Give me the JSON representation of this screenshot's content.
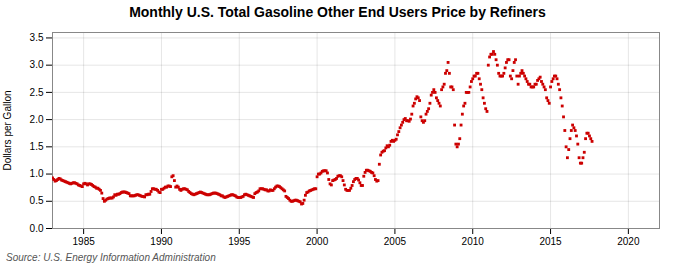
{
  "chart_data": {
    "type": "scatter",
    "title": "Monthly U.S. Total Gasoline Other End Users Price by Refiners",
    "ylabel": "Dollars per Gallon",
    "caption": "Source: U.S. Energy Information Administration",
    "color": "#cc0000",
    "marker": "square",
    "grid": true,
    "xlim": [
      1983,
      2022
    ],
    "xticks": [
      1985,
      1990,
      1995,
      2000,
      2005,
      2010,
      2015,
      2020
    ],
    "ylim": [
      0.0,
      3.6
    ],
    "yticks": [
      {
        "value": 0.0,
        "label": "0.0"
      },
      0.5,
      {
        "value": 1.0,
        "label": "1.0"
      },
      1.5,
      {
        "value": 2.0,
        "label": "2.0"
      },
      2.5,
      {
        "value": 3.0,
        "label": "3.0"
      },
      3.5
    ],
    "x": [
      1983,
      1983.0833333333333,
      1983.1666666666667,
      1983.25,
      1983.3333333333333,
      1983.4166666666667,
      1983.5,
      1983.5833333333333,
      1983.6666666666667,
      1983.75,
      1983.8333333333333,
      1983.9166666666667,
      1984,
      1984.0833333333333,
      1984.1666666666667,
      1984.25,
      1984.3333333333333,
      1984.4166666666667,
      1984.5,
      1984.5833333333333,
      1984.6666666666667,
      1984.75,
      1984.8333333333333,
      1984.9166666666667,
      1985,
      1985.0833333333333,
      1985.1666666666667,
      1985.25,
      1985.3333333333333,
      1985.4166666666667,
      1985.5,
      1985.5833333333333,
      1985.6666666666667,
      1985.75,
      1985.8333333333333,
      1985.9166666666667,
      1986,
      1986.0833333333333,
      1986.1666666666667,
      1986.25,
      1986.3333333333333,
      1986.4166666666667,
      1986.5,
      1986.5833333333333,
      1986.6666666666667,
      1986.75,
      1986.8333333333333,
      1986.9166666666667,
      1987,
      1987.0833333333333,
      1987.1666666666667,
      1987.25,
      1987.3333333333333,
      1987.4166666666667,
      1987.5,
      1987.5833333333333,
      1987.6666666666667,
      1987.75,
      1987.8333333333333,
      1987.9166666666667,
      1988,
      1988.0833333333333,
      1988.1666666666667,
      1988.25,
      1988.3333333333333,
      1988.4166666666667,
      1988.5,
      1988.5833333333333,
      1988.6666666666667,
      1988.75,
      1988.8333333333333,
      1988.9166666666667,
      1989,
      1989.0833333333333,
      1989.1666666666667,
      1989.25,
      1989.3333333333333,
      1989.4166666666667,
      1989.5,
      1989.5833333333333,
      1989.6666666666667,
      1989.75,
      1989.8333333333333,
      1989.9166666666667,
      1990,
      1990.0833333333333,
      1990.1666666666667,
      1990.25,
      1990.3333333333333,
      1990.4166666666667,
      1990.5,
      1990.5833333333333,
      1990.6666666666667,
      1990.75,
      1990.8333333333333,
      1990.9166666666667,
      1991,
      1991.0833333333333,
      1991.1666666666667,
      1991.25,
      1991.3333333333333,
      1991.4166666666667,
      1991.5,
      1991.5833333333333,
      1991.6666666666667,
      1991.75,
      1991.8333333333333,
      1991.9166666666667,
      1992,
      1992.0833333333333,
      1992.1666666666667,
      1992.25,
      1992.3333333333333,
      1992.4166666666667,
      1992.5,
      1992.5833333333333,
      1992.6666666666667,
      1992.75,
      1992.8333333333333,
      1992.9166666666667,
      1993,
      1993.0833333333333,
      1993.1666666666667,
      1993.25,
      1993.3333333333333,
      1993.4166666666667,
      1993.5,
      1993.5833333333333,
      1993.6666666666667,
      1993.75,
      1993.8333333333333,
      1993.9166666666667,
      1994,
      1994.0833333333333,
      1994.1666666666667,
      1994.25,
      1994.3333333333333,
      1994.4166666666667,
      1994.5,
      1994.5833333333333,
      1994.6666666666667,
      1994.75,
      1994.8333333333333,
      1994.9166666666667,
      1995,
      1995.0833333333333,
      1995.1666666666667,
      1995.25,
      1995.3333333333333,
      1995.4166666666667,
      1995.5,
      1995.5833333333333,
      1995.6666666666667,
      1995.75,
      1995.8333333333333,
      1995.9166666666667,
      1996,
      1996.0833333333333,
      1996.1666666666667,
      1996.25,
      1996.3333333333333,
      1996.4166666666667,
      1996.5,
      1996.5833333333333,
      1996.6666666666667,
      1996.75,
      1996.8333333333333,
      1996.9166666666667,
      1997,
      1997.0833333333333,
      1997.1666666666667,
      1997.25,
      1997.3333333333333,
      1997.4166666666667,
      1997.5,
      1997.5833333333333,
      1997.6666666666667,
      1997.75,
      1997.8333333333333,
      1997.9166666666667,
      1998,
      1998.0833333333333,
      1998.1666666666667,
      1998.25,
      1998.3333333333333,
      1998.4166666666667,
      1998.5,
      1998.5833333333333,
      1998.6666666666667,
      1998.75,
      1998.8333333333333,
      1998.9166666666667,
      1999,
      1999.0833333333333,
      1999.1666666666667,
      1999.25,
      1999.3333333333333,
      1999.4166666666667,
      1999.5,
      1999.5833333333333,
      1999.6666666666667,
      1999.75,
      1999.8333333333333,
      1999.9166666666667,
      2000,
      2000.0833333333333,
      2000.1666666666667,
      2000.25,
      2000.3333333333333,
      2000.4166666666667,
      2000.5,
      2000.5833333333333,
      2000.6666666666667,
      2000.75,
      2000.8333333333333,
      2000.9166666666667,
      2001,
      2001.0833333333333,
      2001.1666666666667,
      2001.25,
      2001.3333333333333,
      2001.4166666666667,
      2001.5,
      2001.5833333333333,
      2001.6666666666667,
      2001.75,
      2001.8333333333333,
      2001.9166666666667,
      2002,
      2002.0833333333333,
      2002.1666666666667,
      2002.25,
      2002.3333333333333,
      2002.4166666666667,
      2002.5,
      2002.5833333333333,
      2002.6666666666667,
      2002.75,
      2002.8333333333333,
      2002.9166666666667,
      2003,
      2003.0833333333333,
      2003.1666666666667,
      2003.25,
      2003.3333333333333,
      2003.4166666666667,
      2003.5,
      2003.5833333333333,
      2003.6666666666667,
      2003.75,
      2003.8333333333333,
      2003.9166666666667,
      2004,
      2004.0833333333333,
      2004.1666666666667,
      2004.25,
      2004.3333333333333,
      2004.4166666666667,
      2004.5,
      2004.5833333333333,
      2004.6666666666667,
      2004.75,
      2004.8333333333333,
      2004.9166666666667,
      2005,
      2005.0833333333333,
      2005.1666666666667,
      2005.25,
      2005.3333333333333,
      2005.4166666666667,
      2005.5,
      2005.5833333333333,
      2005.6666666666667,
      2005.75,
      2005.8333333333333,
      2005.9166666666667,
      2006,
      2006.0833333333333,
      2006.1666666666667,
      2006.25,
      2006.3333333333333,
      2006.4166666666667,
      2006.5,
      2006.5833333333333,
      2006.6666666666667,
      2006.75,
      2006.8333333333333,
      2006.9166666666667,
      2007,
      2007.0833333333333,
      2007.1666666666667,
      2007.25,
      2007.3333333333333,
      2007.4166666666667,
      2007.5,
      2007.5833333333333,
      2007.6666666666667,
      2007.75,
      2007.8333333333333,
      2007.9166666666667,
      2008,
      2008.0833333333333,
      2008.1666666666667,
      2008.25,
      2008.3333333333333,
      2008.4166666666667,
      2008.5,
      2008.5833333333333,
      2008.6666666666667,
      2008.75,
      2008.8333333333333,
      2008.9166666666667,
      2009,
      2009.0833333333333,
      2009.1666666666667,
      2009.25,
      2009.3333333333333,
      2009.4166666666667,
      2009.5,
      2009.5833333333333,
      2009.6666666666667,
      2009.75,
      2009.8333333333333,
      2009.9166666666667,
      2010,
      2010.0833333333333,
      2010.1666666666667,
      2010.25,
      2010.3333333333333,
      2010.4166666666667,
      2010.5,
      2010.5833333333333,
      2010.6666666666667,
      2010.75,
      2010.8333333333333,
      2010.9166666666667,
      2011,
      2011.0833333333333,
      2011.1666666666667,
      2011.25,
      2011.3333333333333,
      2011.4166666666667,
      2011.5,
      2011.5833333333333,
      2011.6666666666667,
      2011.75,
      2011.8333333333333,
      2011.9166666666667,
      2012,
      2012.0833333333333,
      2012.1666666666667,
      2012.25,
      2012.3333333333333,
      2012.4166666666667,
      2012.5,
      2012.5833333333333,
      2012.6666666666667,
      2012.75,
      2012.8333333333333,
      2012.9166666666667,
      2013,
      2013.0833333333333,
      2013.1666666666667,
      2013.25,
      2013.3333333333333,
      2013.4166666666667,
      2013.5,
      2013.5833333333333,
      2013.6666666666667,
      2013.75,
      2013.8333333333333,
      2013.9166666666667,
      2014,
      2014.0833333333333,
      2014.1666666666667,
      2014.25,
      2014.3333333333333,
      2014.4166666666667,
      2014.5,
      2014.5833333333333,
      2014.6666666666667,
      2014.75,
      2014.8333333333333,
      2014.9166666666667,
      2015,
      2015.0833333333333,
      2015.1666666666667,
      2015.25,
      2015.3333333333333,
      2015.4166666666667,
      2015.5,
      2015.5833333333333,
      2015.6666666666667,
      2015.75,
      2015.8333333333333,
      2015.9166666666667,
      2016,
      2016.0833333333333,
      2016.1666666666667,
      2016.25,
      2016.3333333333333,
      2016.4166666666667,
      2016.5,
      2016.5833333333333,
      2016.6666666666667,
      2016.75,
      2016.8333333333333,
      2016.9166666666667,
      2017,
      2017.0833333333333,
      2017.1666666666667,
      2017.25,
      2017.3333333333333,
      2017.4166666666667,
      2017.5,
      2017.5833333333333,
      2017.6666666666667
    ],
    "values": [
      0.93,
      0.9,
      0.87,
      0.88,
      0.9,
      0.92,
      0.91,
      0.89,
      0.88,
      0.87,
      0.86,
      0.85,
      0.84,
      0.83,
      0.82,
      0.83,
      0.84,
      0.84,
      0.83,
      0.82,
      0.8,
      0.79,
      0.78,
      0.77,
      0.82,
      0.83,
      0.82,
      0.8,
      0.82,
      0.82,
      0.81,
      0.79,
      0.77,
      0.76,
      0.74,
      0.74,
      0.72,
      0.7,
      0.65,
      0.55,
      0.5,
      0.52,
      0.54,
      0.55,
      0.56,
      0.56,
      0.56,
      0.58,
      0.62,
      0.61,
      0.63,
      0.63,
      0.64,
      0.66,
      0.67,
      0.67,
      0.67,
      0.66,
      0.65,
      0.64,
      0.6,
      0.6,
      0.6,
      0.6,
      0.61,
      0.62,
      0.62,
      0.61,
      0.6,
      0.59,
      0.59,
      0.58,
      0.62,
      0.62,
      0.63,
      0.63,
      0.68,
      0.73,
      0.73,
      0.72,
      0.72,
      0.7,
      0.67,
      0.66,
      0.72,
      0.72,
      0.74,
      0.76,
      0.76,
      0.78,
      0.78,
      0.77,
      0.95,
      0.97,
      0.88,
      0.76,
      0.78,
      0.76,
      0.72,
      0.7,
      0.72,
      0.73,
      0.73,
      0.72,
      0.71,
      0.68,
      0.66,
      0.64,
      0.63,
      0.62,
      0.63,
      0.64,
      0.65,
      0.66,
      0.67,
      0.66,
      0.65,
      0.64,
      0.63,
      0.62,
      0.62,
      0.62,
      0.63,
      0.64,
      0.65,
      0.65,
      0.65,
      0.64,
      0.63,
      0.62,
      0.6,
      0.6,
      0.58,
      0.57,
      0.58,
      0.59,
      0.6,
      0.61,
      0.62,
      0.62,
      0.61,
      0.6,
      0.58,
      0.57,
      0.57,
      0.57,
      0.58,
      0.59,
      0.62,
      0.63,
      0.62,
      0.61,
      0.6,
      0.59,
      0.58,
      0.57,
      0.64,
      0.66,
      0.67,
      0.69,
      0.73,
      0.73,
      0.73,
      0.72,
      0.71,
      0.71,
      0.69,
      0.69,
      0.71,
      0.7,
      0.7,
      0.73,
      0.76,
      0.78,
      0.78,
      0.77,
      0.75,
      0.73,
      0.71,
      0.69,
      0.59,
      0.57,
      0.55,
      0.52,
      0.5,
      0.5,
      0.51,
      0.52,
      0.52,
      0.51,
      0.5,
      0.49,
      0.45,
      0.46,
      0.52,
      0.61,
      0.66,
      0.67,
      0.69,
      0.7,
      0.71,
      0.72,
      0.73,
      0.73,
      0.95,
      1.0,
      1.0,
      1.02,
      1.05,
      1.06,
      1.06,
      1.06,
      1.02,
      0.9,
      0.82,
      0.8,
      0.88,
      0.89,
      0.9,
      0.92,
      0.96,
      0.97,
      0.97,
      0.95,
      0.88,
      0.8,
      0.72,
      0.7,
      0.7,
      0.7,
      0.74,
      0.79,
      0.86,
      0.9,
      0.92,
      0.92,
      0.89,
      0.84,
      0.79,
      0.79,
      0.96,
      1.03,
      1.07,
      1.07,
      1.06,
      1.05,
      1.03,
      1.02,
      0.97,
      0.9,
      0.87,
      0.88,
      1.18,
      1.35,
      1.4,
      1.42,
      1.43,
      1.48,
      1.52,
      1.5,
      1.53,
      1.6,
      1.62,
      1.6,
      1.62,
      1.64,
      1.72,
      1.78,
      1.85,
      1.9,
      1.95,
      2.0,
      2.02,
      1.98,
      1.98,
      1.97,
      2.01,
      2.1,
      2.25,
      2.3,
      2.38,
      2.42,
      2.4,
      2.35,
      2.05,
      1.98,
      1.95,
      1.98,
      2.1,
      2.15,
      2.2,
      2.3,
      2.45,
      2.5,
      2.55,
      2.5,
      2.4,
      2.35,
      2.3,
      2.25,
      2.55,
      2.6,
      2.65,
      2.85,
      2.9,
      3.05,
      2.85,
      2.6,
      2.6,
      2.55,
      1.9,
      1.55,
      1.5,
      1.55,
      1.65,
      1.9,
      2.1,
      2.25,
      2.3,
      2.5,
      2.5,
      2.5,
      2.6,
      2.7,
      2.75,
      2.8,
      2.8,
      2.85,
      2.85,
      2.75,
      2.65,
      2.55,
      2.4,
      2.3,
      2.2,
      2.15,
      3.0,
      3.15,
      3.2,
      3.2,
      3.25,
      3.2,
      3.1,
      3.0,
      2.85,
      2.8,
      2.8,
      2.8,
      2.85,
      2.95,
      3.05,
      3.1,
      3.1,
      2.8,
      2.75,
      2.9,
      3.05,
      3.1,
      2.8,
      2.65,
      2.8,
      2.85,
      2.9,
      2.85,
      2.8,
      2.75,
      2.7,
      2.65,
      2.65,
      2.6,
      2.6,
      2.6,
      2.65,
      2.65,
      2.72,
      2.75,
      2.78,
      2.7,
      2.65,
      2.6,
      2.55,
      2.4,
      2.35,
      2.3,
      2.6,
      2.7,
      2.75,
      2.8,
      2.8,
      2.75,
      2.65,
      2.55,
      2.4,
      2.25,
      2.05,
      1.8,
      1.5,
      1.3,
      1.45,
      1.65,
      1.8,
      1.9,
      1.85,
      1.8,
      1.7,
      1.55,
      1.3,
      1.2,
      1.2,
      1.3,
      1.4,
      1.65,
      1.75,
      1.75,
      1.7,
      1.65,
      1.6
    ]
  }
}
